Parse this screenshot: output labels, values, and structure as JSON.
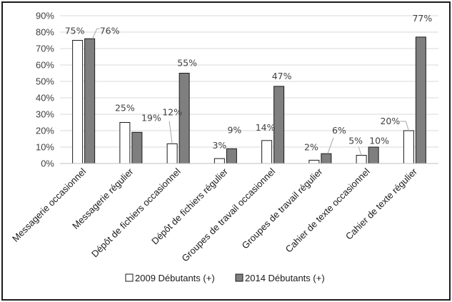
{
  "chart_data": {
    "type": "bar",
    "categories": [
      "Messagerie occasionnel",
      "Messagerie régulier",
      "Dépôt de fichiers occasionnel",
      "Dépôt de fichiers régulier",
      "Groupes de travail occasionnel",
      "Groupes de travail régulier",
      "Cahier de texte occasionnel",
      "Cahier de texte régulier"
    ],
    "series": [
      {
        "name": "2009 Débutants (+)",
        "values": [
          75,
          25,
          12,
          3,
          14,
          2,
          5,
          20
        ],
        "labels": [
          "75%",
          "25%",
          "12%",
          "3%",
          "14%",
          "2%",
          "5%",
          "20%"
        ],
        "color": "#ffffff",
        "stroke": "#1a1a1a"
      },
      {
        "name": "2014 Débutants (+)",
        "values": [
          76,
          19,
          55,
          9,
          47,
          6,
          10,
          77
        ],
        "labels": [
          "76%",
          "19%",
          "55%",
          "9%",
          "47%",
          "6%",
          "10%",
          "77%"
        ],
        "color": "#7f7f7f",
        "stroke": "#1a1a1a"
      }
    ],
    "y_ticks": [
      "0%",
      "10%",
      "20%",
      "30%",
      "40%",
      "50%",
      "60%",
      "70%",
      "80%",
      "90%"
    ],
    "ylim": [
      0,
      90
    ],
    "grid": true,
    "legend_position": "bottom",
    "gridline_color": "#d9d9d9",
    "title": "",
    "xlabel": "",
    "ylabel": ""
  }
}
